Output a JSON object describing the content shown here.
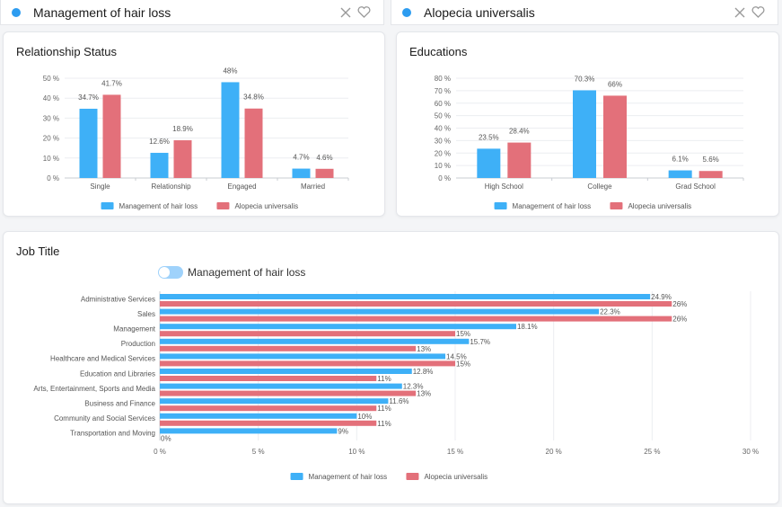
{
  "colors": {
    "series_a": "#3eb0f7",
    "series_b": "#e3707a",
    "accent": "#2d9cf0"
  },
  "tabs": [
    {
      "title": "Management of hair loss",
      "close_icon": "close-icon",
      "favorite_icon": "heart-icon"
    },
    {
      "title": "Alopecia universalis",
      "close_icon": "close-icon",
      "favorite_icon": "heart-icon"
    }
  ],
  "relationship": {
    "title": "Relationship Status",
    "chart_data": {
      "type": "bar",
      "categories": [
        "Single",
        "Relationship",
        "Engaged",
        "Married"
      ],
      "series": [
        {
          "name": "Management of hair loss",
          "values": [
            34.7,
            12.6,
            48,
            4.7
          ],
          "labels": [
            "34.7%",
            "12.6%",
            "48%",
            "4.7%"
          ]
        },
        {
          "name": "Alopecia universalis",
          "values": [
            41.7,
            18.9,
            34.8,
            4.6
          ],
          "labels": [
            "41.7%",
            "18.9%",
            "34.8%",
            "4.6%"
          ]
        }
      ],
      "ylim": [
        0,
        50
      ],
      "yticks": [
        "0 %",
        "10 %",
        "20 %",
        "30 %",
        "40 %",
        "50 %"
      ],
      "legend": [
        "Management of hair loss",
        "Alopecia universalis"
      ]
    }
  },
  "educations": {
    "title": "Educations",
    "chart_data": {
      "type": "bar",
      "categories": [
        "High School",
        "College",
        "Grad School"
      ],
      "series": [
        {
          "name": "Management of hair loss",
          "values": [
            23.5,
            70.3,
            6.1
          ],
          "labels": [
            "23.5%",
            "70.3%",
            "6.1%"
          ]
        },
        {
          "name": "Alopecia universalis",
          "values": [
            28.4,
            66,
            5.6
          ],
          "labels": [
            "28.4%",
            "66%",
            "5.6%"
          ]
        }
      ],
      "ylim": [
        0,
        80
      ],
      "yticks": [
        "0 %",
        "10 %",
        "20 %",
        "30 %",
        "40 %",
        "50 %",
        "60 %",
        "70 %",
        "80 %"
      ],
      "legend": [
        "Management of hair loss",
        "Alopecia universalis"
      ]
    }
  },
  "job": {
    "title": "Job Title",
    "toggle_label": "Management of hair loss",
    "chart_data": {
      "type": "bar",
      "orientation": "horizontal",
      "categories": [
        "Administrative Services",
        "Sales",
        "Management",
        "Production",
        "Healthcare and Medical Services",
        "Education and Libraries",
        "Arts, Entertainment, Sports and Media",
        "Business and Finance",
        "Community and Social Services",
        "Transportation and Moving"
      ],
      "series": [
        {
          "name": "Management of hair loss",
          "values": [
            24.9,
            22.3,
            18.1,
            15.7,
            14.5,
            12.8,
            12.3,
            11.6,
            10,
            9
          ],
          "labels": [
            "24.9%",
            "22.3%",
            "18.1%",
            "15.7%",
            "14.5%",
            "12.8%",
            "12.3%",
            "11.6%",
            "10%",
            "9%"
          ]
        },
        {
          "name": "Alopecia universalis",
          "values": [
            26,
            26,
            15,
            13,
            15,
            11,
            13,
            11,
            11,
            0
          ],
          "labels": [
            "26%",
            "26%",
            "15%",
            "13%",
            "15%",
            "11%",
            "13%",
            "11%",
            "11%",
            "0%"
          ]
        }
      ],
      "xlim": [
        0,
        30
      ],
      "xticks": [
        "0 %",
        "5 %",
        "10 %",
        "15 %",
        "20 %",
        "25 %",
        "30 %"
      ],
      "legend": [
        "Management of hair loss",
        "Alopecia universalis"
      ]
    }
  }
}
